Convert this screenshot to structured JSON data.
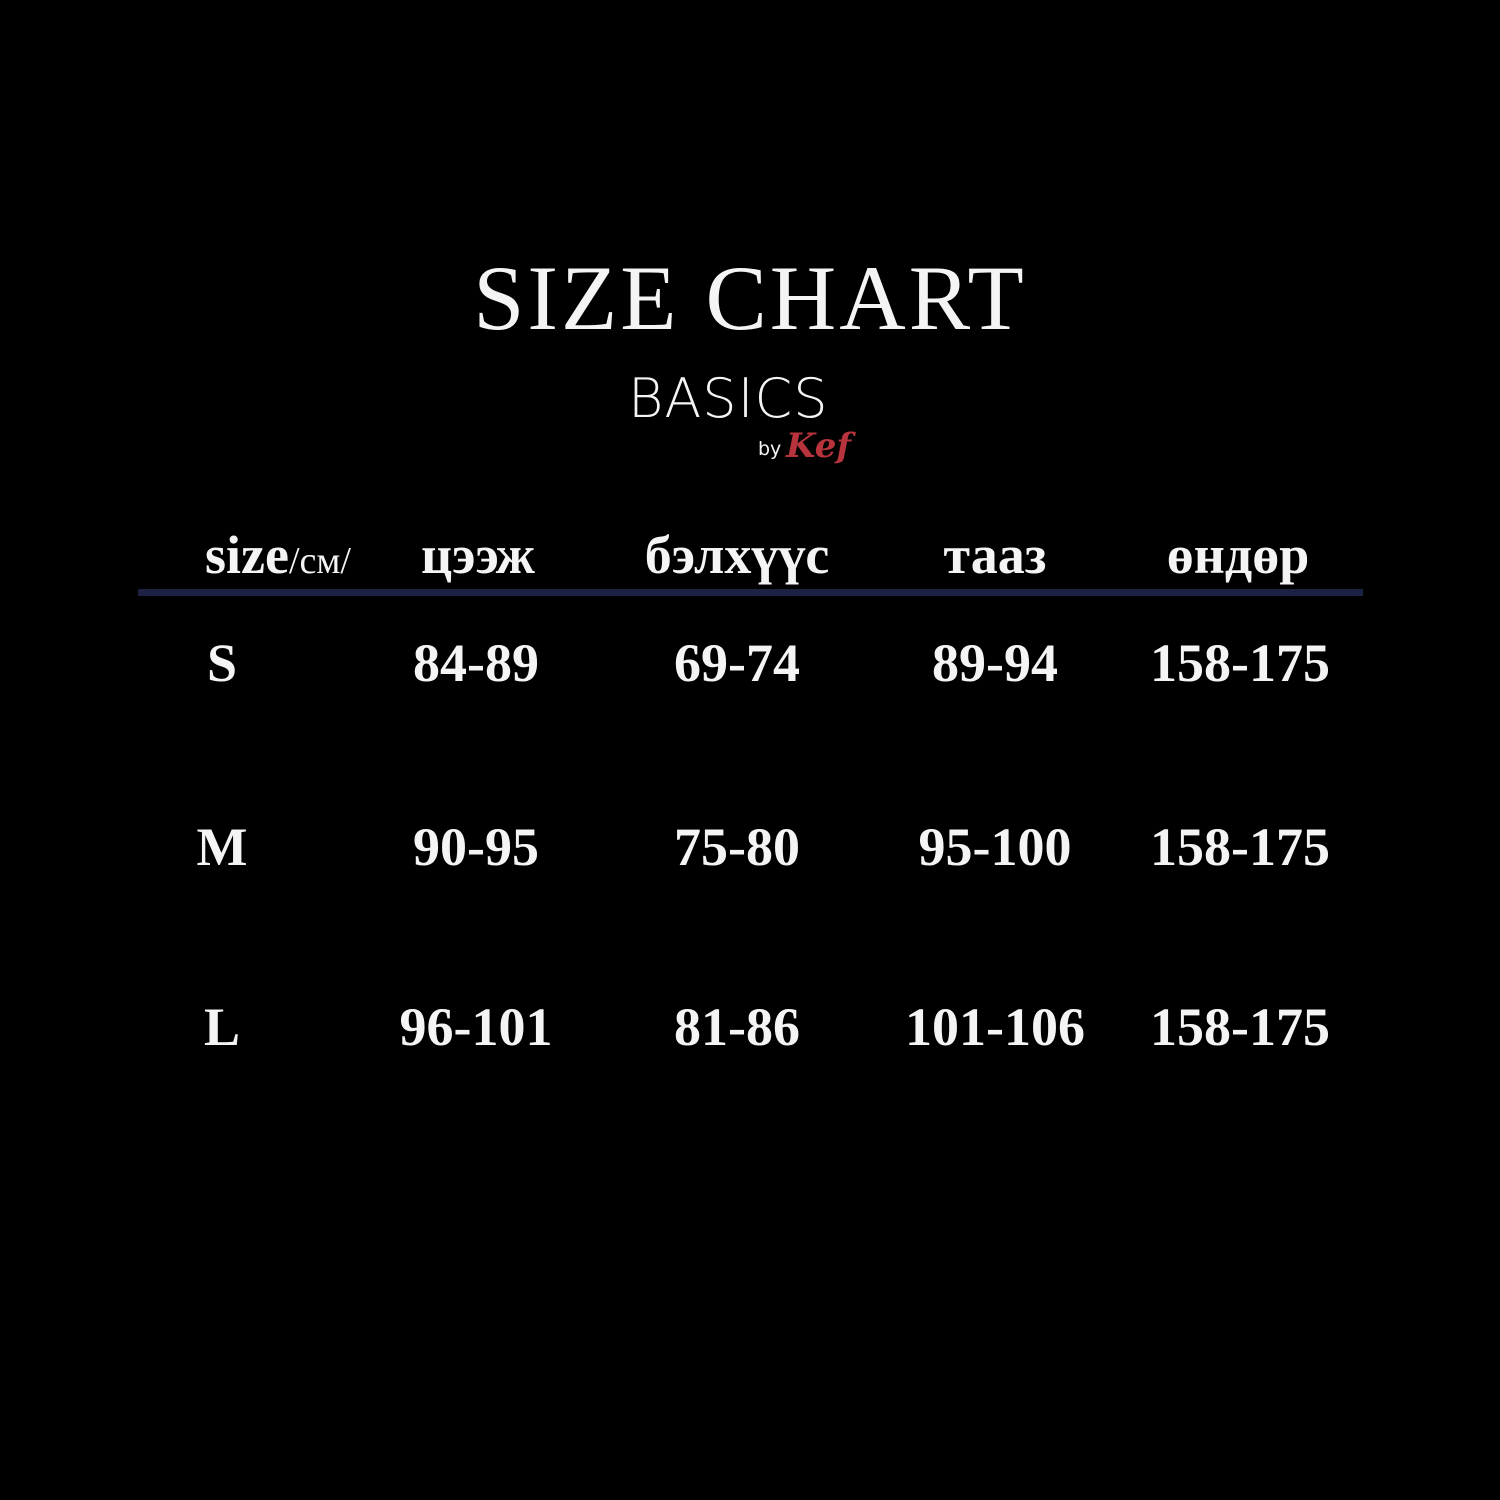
{
  "title": "SIZE CHART",
  "logo": {
    "main": "BASICS",
    "by": "by",
    "brand": "Kef",
    "brand_color": "#b8343d"
  },
  "rule_color": "#1d2244",
  "table": {
    "headers": [
      "size",
      "/см/",
      "цээж",
      "бэлхүүс",
      "тааз",
      "өндөр"
    ],
    "rows": [
      [
        "S",
        "84-89",
        "69-74",
        "89-94",
        "158-175"
      ],
      [
        "M",
        "90-95",
        "75-80",
        "95-100",
        "158-175"
      ],
      [
        "L",
        "96-101",
        "81-86",
        "101-106",
        "158-175"
      ]
    ]
  }
}
